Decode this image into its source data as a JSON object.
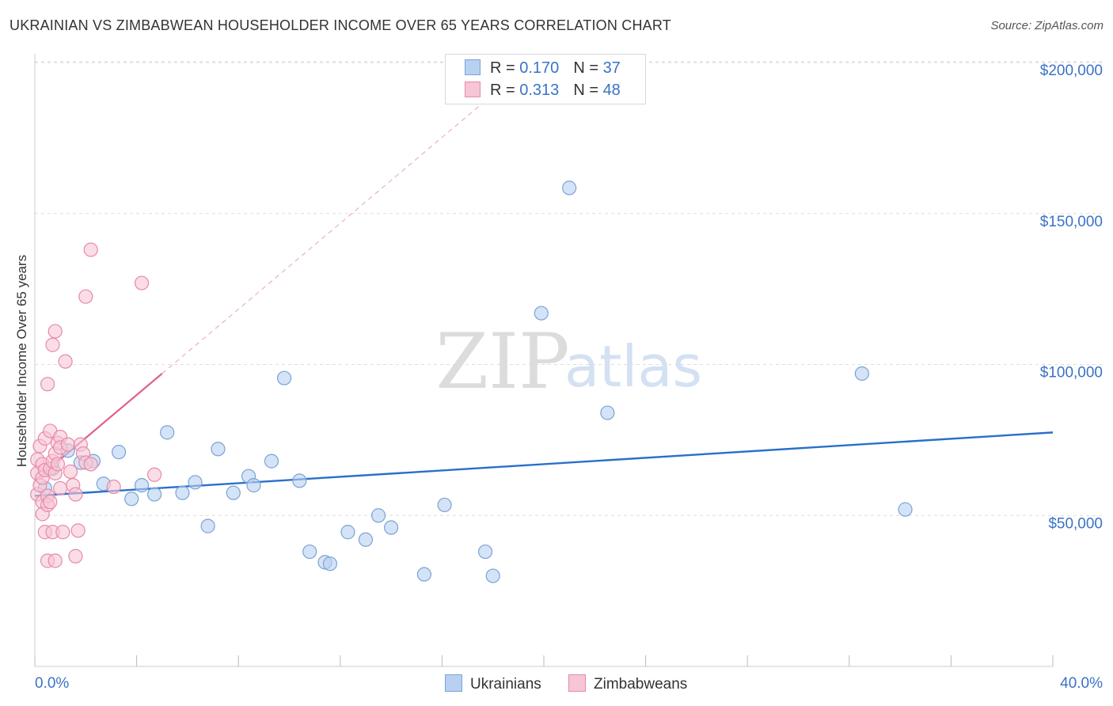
{
  "header": {
    "title": "UKRAINIAN VS ZIMBABWEAN HOUSEHOLDER INCOME OVER 65 YEARS CORRELATION CHART",
    "source": "Source: ZipAtlas.com"
  },
  "watermark": {
    "zip": "ZIP",
    "atlas": "atlas"
  },
  "legend_top": {
    "rows": [
      {
        "r_label": "R =",
        "r_value": "0.170",
        "n_label": "N =",
        "n_value": "37"
      },
      {
        "r_label": "R =",
        "r_value": "0.313",
        "n_label": "N =",
        "n_value": "48"
      }
    ]
  },
  "legend_bottom": {
    "items": [
      {
        "label": "Ukrainians"
      },
      {
        "label": "Zimbabweans"
      }
    ]
  },
  "colors": {
    "blue_fill": "#b8d1f0",
    "blue_stroke": "#7aa3d6",
    "blue_line": "#2a6fcb",
    "pink_fill": "#f6c6d5",
    "pink_stroke": "#e68aa8",
    "pink_line": "#e0608c",
    "grid": "#dddddd",
    "tick_label": "#3a73c4"
  },
  "chart_data": {
    "type": "scatter",
    "title": "UKRAINIAN VS ZIMBABWEAN HOUSEHOLDER INCOME OVER 65 YEARS CORRELATION CHART",
    "xlabel": "",
    "ylabel": "Householder Income Over 65 years",
    "xlim": [
      0,
      40
    ],
    "ylim": [
      0,
      205000
    ],
    "x_tick_labels": {
      "min": "0.0%",
      "max": "40.0%"
    },
    "y_ticks": [
      {
        "value": 50000,
        "label": "$50,000"
      },
      {
        "value": 100000,
        "label": "$100,000"
      },
      {
        "value": 150000,
        "label": "$150,000"
      },
      {
        "value": 200000,
        "label": "$200,000"
      }
    ],
    "series": [
      {
        "name": "Ukrainians",
        "r": 0.17,
        "n": 37,
        "trend": {
          "x0": 0,
          "y0": 56500,
          "x1": 40,
          "y1": 77500,
          "style": "solid"
        },
        "points": [
          [
            0.4,
            59000
          ],
          [
            0.7,
            65500
          ],
          [
            1.3,
            71500
          ],
          [
            1.8,
            67500
          ],
          [
            2.3,
            68000
          ],
          [
            2.7,
            60500
          ],
          [
            3.3,
            71000
          ],
          [
            3.8,
            55500
          ],
          [
            4.2,
            60000
          ],
          [
            4.7,
            57000
          ],
          [
            5.2,
            77500
          ],
          [
            5.8,
            57500
          ],
          [
            6.3,
            61000
          ],
          [
            6.8,
            46500
          ],
          [
            7.2,
            72000
          ],
          [
            7.8,
            57500
          ],
          [
            8.4,
            63000
          ],
          [
            8.6,
            60000
          ],
          [
            9.3,
            68000
          ],
          [
            9.8,
            95500
          ],
          [
            10.4,
            61500
          ],
          [
            10.8,
            38000
          ],
          [
            11.4,
            34500
          ],
          [
            11.6,
            34000
          ],
          [
            12.3,
            44500
          ],
          [
            13.0,
            42000
          ],
          [
            13.5,
            50000
          ],
          [
            14.0,
            46000
          ],
          [
            15.3,
            30500
          ],
          [
            16.1,
            53500
          ],
          [
            17.7,
            38000
          ],
          [
            18.0,
            30000
          ],
          [
            19.9,
            117000
          ],
          [
            21.0,
            158500
          ],
          [
            22.5,
            84000
          ],
          [
            32.5,
            97000
          ],
          [
            34.2,
            52000
          ]
        ]
      },
      {
        "name": "Zimbabweans",
        "r": 0.313,
        "n": 48,
        "trend": {
          "x0": 0,
          "y0": 61500,
          "x1": 5.0,
          "y1": 97000,
          "style": "solid"
        },
        "trend_extension": {
          "x0": 5.0,
          "y0": 97000,
          "x1": 18.5,
          "y1": 193000,
          "style": "dashed"
        },
        "points": [
          [
            0.1,
            68500
          ],
          [
            0.1,
            64000
          ],
          [
            0.1,
            57000
          ],
          [
            0.2,
            60000
          ],
          [
            0.2,
            73000
          ],
          [
            0.3,
            67000
          ],
          [
            0.3,
            62500
          ],
          [
            0.3,
            54500
          ],
          [
            0.3,
            50500
          ],
          [
            0.4,
            44500
          ],
          [
            0.4,
            75500
          ],
          [
            0.4,
            65000
          ],
          [
            0.5,
            56500
          ],
          [
            0.5,
            53500
          ],
          [
            0.5,
            93500
          ],
          [
            0.5,
            35000
          ],
          [
            0.6,
            78000
          ],
          [
            0.6,
            54500
          ],
          [
            0.6,
            65500
          ],
          [
            0.7,
            106500
          ],
          [
            0.7,
            68000
          ],
          [
            0.7,
            44500
          ],
          [
            0.8,
            111000
          ],
          [
            0.8,
            70500
          ],
          [
            0.8,
            64000
          ],
          [
            0.8,
            35000
          ],
          [
            0.9,
            74000
          ],
          [
            0.9,
            67000
          ],
          [
            1.0,
            76000
          ],
          [
            1.0,
            72500
          ],
          [
            1.0,
            59000
          ],
          [
            1.1,
            44500
          ],
          [
            1.2,
            101000
          ],
          [
            1.3,
            73500
          ],
          [
            1.4,
            64500
          ],
          [
            1.5,
            60000
          ],
          [
            1.6,
            57000
          ],
          [
            1.6,
            36500
          ],
          [
            1.7,
            45000
          ],
          [
            1.8,
            73500
          ],
          [
            1.9,
            70500
          ],
          [
            2.0,
            67500
          ],
          [
            2.0,
            122500
          ],
          [
            2.2,
            67000
          ],
          [
            2.2,
            138000
          ],
          [
            3.1,
            59500
          ],
          [
            4.2,
            127000
          ],
          [
            4.7,
            63500
          ]
        ]
      }
    ]
  }
}
